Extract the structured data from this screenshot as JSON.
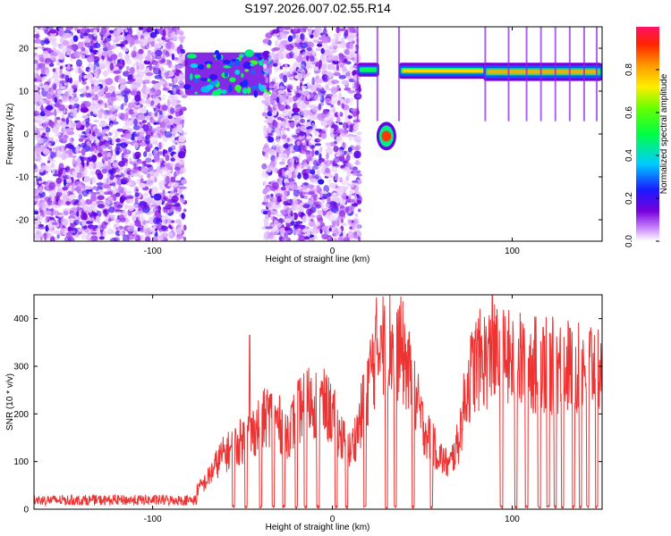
{
  "title": "S197.2026.007.02.55.R14",
  "chart_data": [
    {
      "type": "heatmap",
      "name": "spectrogram",
      "xlabel": "Height of straight line (km)",
      "ylabel": "Frequency (Hz)",
      "xlim": [
        -166,
        150
      ],
      "ylim": [
        -25,
        25
      ],
      "xticks": [
        -100,
        0,
        100
      ],
      "yticks": [
        -20,
        -10,
        0,
        10,
        20
      ],
      "colorbar": {
        "label": "Normalized spectral amplitude",
        "range": [
          0,
          1
        ],
        "ticks": [
          0.0,
          0.2,
          0.4,
          0.6,
          0.8
        ],
        "tick_labels": [
          "0.0",
          "0.2",
          "0.4",
          "0.6",
          "0.8"
        ]
      },
      "regions": [
        {
          "name": "noise",
          "x": [
            -166,
            -82
          ],
          "y": [
            -25,
            25
          ],
          "amplitude": 0.05
        },
        {
          "name": "cluster",
          "x": [
            -82,
            -35
          ],
          "y": [
            9,
            19
          ],
          "amplitude": 0.4
        },
        {
          "name": "noise",
          "x": [
            -38,
            15
          ],
          "y": [
            -25,
            25
          ],
          "amplitude": 0.05
        },
        {
          "name": "line",
          "x": [
            14,
            26
          ],
          "y": [
            14,
            16
          ],
          "amplitude": 0.5
        },
        {
          "name": "blob",
          "x": [
            26,
            34
          ],
          "y": [
            -3,
            2
          ],
          "amplitude": 0.9
        },
        {
          "name": "line",
          "x": [
            37,
            88
          ],
          "y": [
            13.5,
            16
          ],
          "amplitude": 0.75
        },
        {
          "name": "line",
          "x": [
            84,
            150
          ],
          "y": [
            13,
            16
          ],
          "amplitude": 0.8
        }
      ]
    },
    {
      "type": "line",
      "name": "snr",
      "xlabel": "Height of straight line (km)",
      "ylabel": "SNR (10 * v/v)",
      "xlim": [
        -166,
        150
      ],
      "ylim": [
        0,
        450
      ],
      "xticks": [
        -100,
        0,
        100
      ],
      "yticks": [
        0,
        100,
        200,
        300,
        400
      ],
      "color": "#ee3333",
      "envelope": {
        "x": [
          -166,
          -80,
          -70,
          -62,
          -55,
          -45,
          -35,
          -25,
          -15,
          -5,
          0,
          5,
          10,
          15,
          20,
          25,
          30,
          35,
          40,
          45,
          50,
          55,
          60,
          65,
          70,
          75,
          80,
          90,
          100,
          110,
          120,
          130,
          140,
          150
        ],
        "y": [
          20,
          22,
          60,
          110,
          130,
          160,
          200,
          160,
          230,
          220,
          200,
          150,
          120,
          180,
          270,
          340,
          345,
          350,
          320,
          250,
          180,
          140,
          110,
          90,
          140,
          260,
          310,
          320,
          310,
          305,
          300,
          300,
          305,
          300
        ]
      },
      "peak_values": [
        {
          "x": -46,
          "y": 365
        },
        {
          "x": 27,
          "y": 385
        },
        {
          "x": 89,
          "y": 450
        }
      ],
      "dropouts_x": [
        -55,
        -48,
        -40,
        -33,
        -27,
        -20,
        -15,
        -8,
        2,
        8,
        18,
        30,
        35,
        45,
        55,
        94,
        102,
        108,
        115,
        120,
        124,
        128,
        134,
        138,
        142,
        147
      ]
    }
  ]
}
